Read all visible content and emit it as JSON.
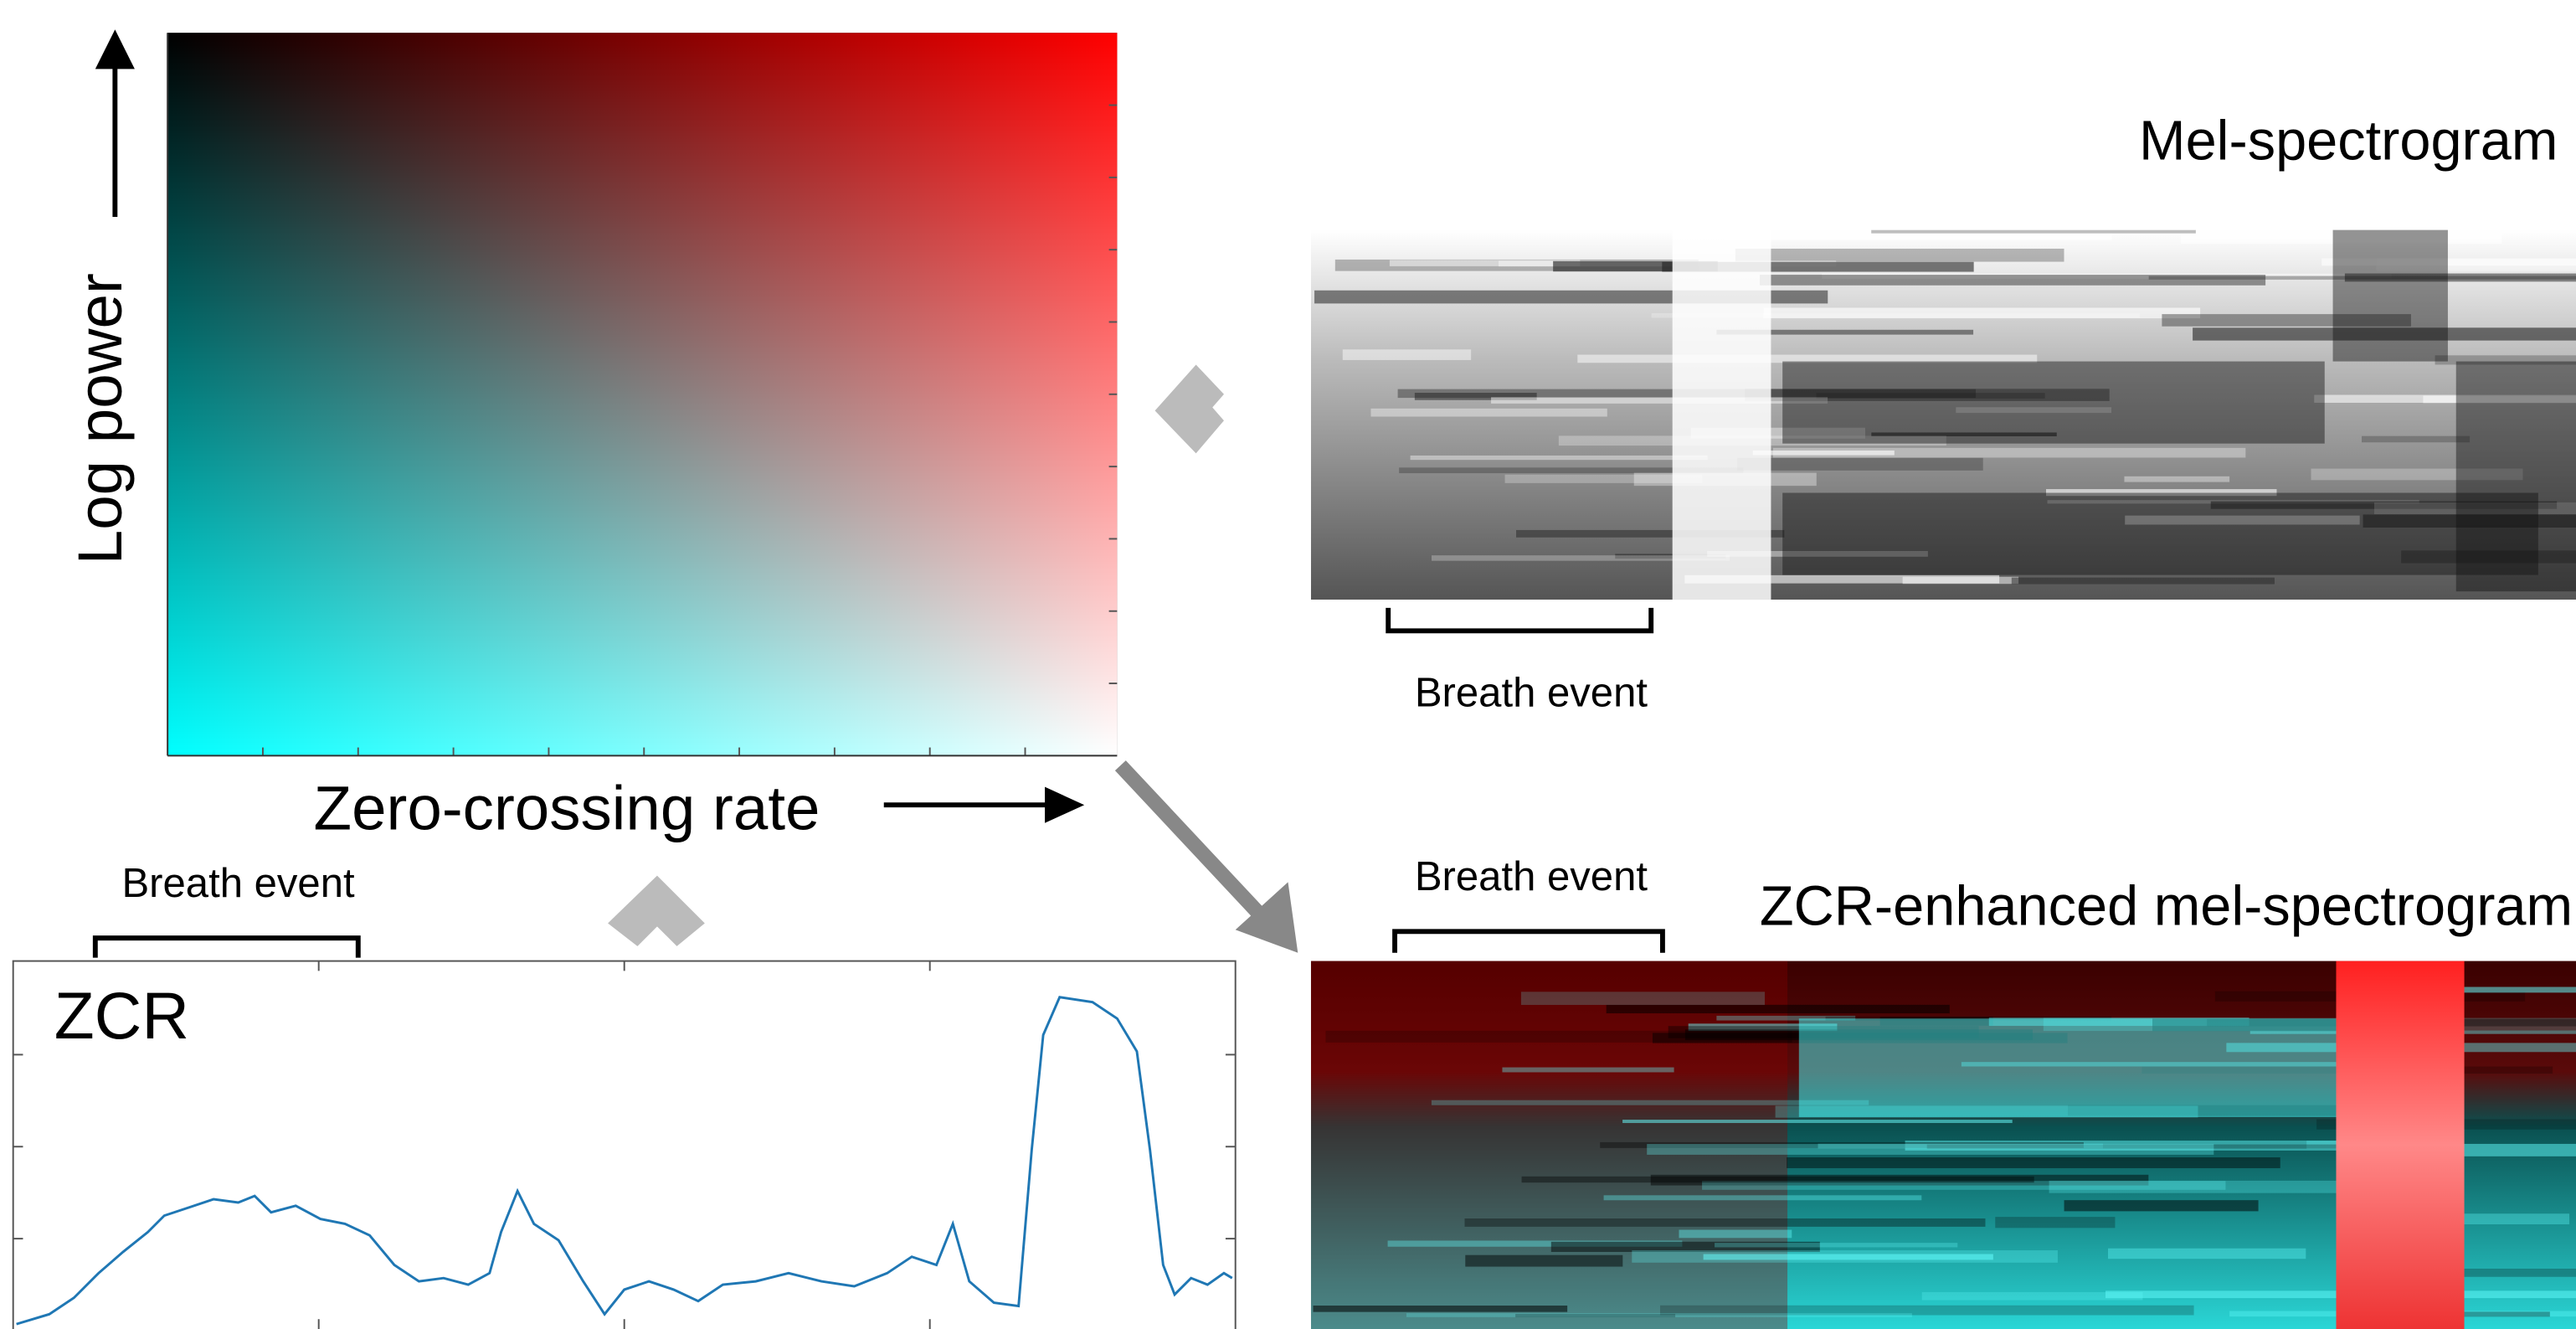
{
  "colormap": {
    "y_axis_label": "Log power",
    "x_axis_label": "Zero-crossing rate"
  },
  "mel_spectrogram": {
    "title": "Mel-spectrogram",
    "annotation": "Breath event"
  },
  "zcr_enhanced": {
    "title": "ZCR-enhanced mel-spectrogram",
    "annotation": "Breath event"
  },
  "zcr_plot": {
    "label": "ZCR",
    "annotation": "Breath event"
  }
}
